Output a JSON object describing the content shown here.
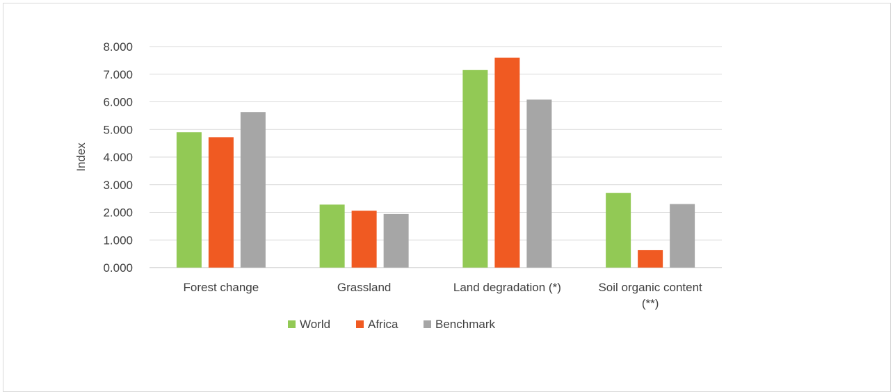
{
  "chart_data": {
    "type": "bar",
    "title": "",
    "xlabel": "",
    "ylabel": "Index",
    "ylim": [
      0,
      8
    ],
    "yticks": [
      "0.000",
      "1.000",
      "2.000",
      "3.000",
      "4.000",
      "5.000",
      "6.000",
      "7.000",
      "8.000"
    ],
    "categories": [
      [
        "Forest change"
      ],
      [
        "Grassland"
      ],
      [
        "Land degradation (*)"
      ],
      [
        "Soil organic content",
        "(**)"
      ]
    ],
    "series": [
      {
        "name": "World",
        "color": "#92c955",
        "values": [
          4.9,
          2.28,
          7.15,
          2.7
        ]
      },
      {
        "name": "Africa",
        "color": "#f05a22",
        "values": [
          4.72,
          2.06,
          7.6,
          0.63
        ]
      },
      {
        "name": "Benchmark",
        "color": "#a6a6a6",
        "values": [
          5.63,
          1.94,
          6.08,
          2.3
        ]
      }
    ],
    "grid": true,
    "legend": "bottom"
  }
}
